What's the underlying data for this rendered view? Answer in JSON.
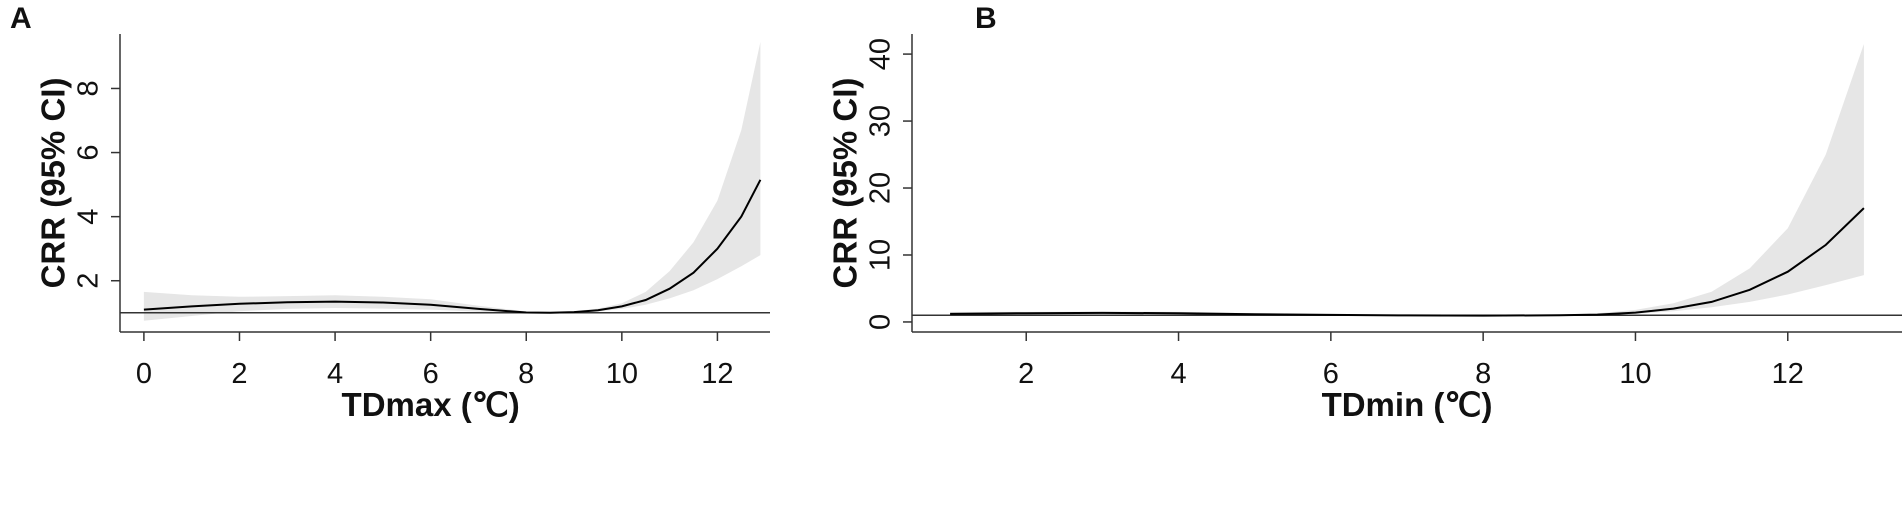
{
  "chart_data": [
    {
      "type": "line",
      "panel_label": "A",
      "xlabel": "TDmax (℃)",
      "ylabel": "CRR (95% CI)",
      "xlim": [
        -0.5,
        13.1
      ],
      "ylim": [
        0.4,
        9.7
      ],
      "xticks": [
        0,
        2,
        4,
        6,
        8,
        10,
        12
      ],
      "yticks": [
        2,
        4,
        6,
        8
      ],
      "reference_line": 1,
      "x": [
        0,
        1,
        2,
        3,
        4,
        5,
        6,
        7,
        8,
        8.5,
        9,
        9.5,
        10,
        10.5,
        11,
        11.5,
        12,
        12.5,
        12.9
      ],
      "y": [
        1.1,
        1.2,
        1.28,
        1.33,
        1.35,
        1.32,
        1.25,
        1.12,
        1.01,
        1.0,
        1.02,
        1.08,
        1.2,
        1.4,
        1.75,
        2.25,
        3.0,
        4.0,
        5.15
      ],
      "ci_lower": [
        0.75,
        0.9,
        1.05,
        1.12,
        1.15,
        1.13,
        1.1,
        1.03,
        0.98,
        0.99,
        1.0,
        1.04,
        1.12,
        1.25,
        1.45,
        1.7,
        2.05,
        2.45,
        2.8
      ],
      "ci_upper": [
        1.65,
        1.55,
        1.5,
        1.52,
        1.55,
        1.5,
        1.42,
        1.22,
        1.04,
        1.01,
        1.05,
        1.13,
        1.3,
        1.65,
        2.3,
        3.2,
        4.5,
        6.7,
        9.45
      ],
      "grid": false,
      "colors": {
        "line": "#000000",
        "ci_band": "#e6e6e6",
        "axis": "#333333"
      }
    },
    {
      "type": "line",
      "panel_label": "B",
      "xlabel": "TDmin (℃)",
      "ylabel": "CRR (95% CI)",
      "xlim": [
        0.5,
        13.5
      ],
      "ylim": [
        -1.5,
        43
      ],
      "xticks": [
        2,
        4,
        6,
        8,
        10,
        12
      ],
      "yticks": [
        0,
        10,
        20,
        30,
        40
      ],
      "reference_line": 1,
      "x": [
        1,
        2,
        3,
        4,
        5,
        6,
        7,
        8,
        9,
        9.5,
        10,
        10.5,
        11,
        11.5,
        12,
        12.5,
        13
      ],
      "y": [
        1.2,
        1.3,
        1.35,
        1.3,
        1.15,
        1.05,
        0.98,
        0.95,
        1.0,
        1.1,
        1.4,
        2.0,
        3.0,
        4.8,
        7.5,
        11.5,
        17
      ],
      "ci_lower": [
        0.9,
        1.1,
        1.15,
        1.1,
        1.0,
        0.95,
        0.92,
        0.9,
        0.95,
        1.0,
        1.2,
        1.6,
        2.2,
        3.0,
        4.1,
        5.5,
        7.0
      ],
      "ci_upper": [
        1.5,
        1.5,
        1.55,
        1.5,
        1.3,
        1.15,
        1.05,
        1.0,
        1.08,
        1.3,
        1.8,
        2.8,
        4.5,
        8.0,
        14.0,
        25.0,
        41.5
      ],
      "grid": false,
      "colors": {
        "line": "#000000",
        "ci_band": "#e6e6e6",
        "axis": "#333333"
      }
    }
  ]
}
